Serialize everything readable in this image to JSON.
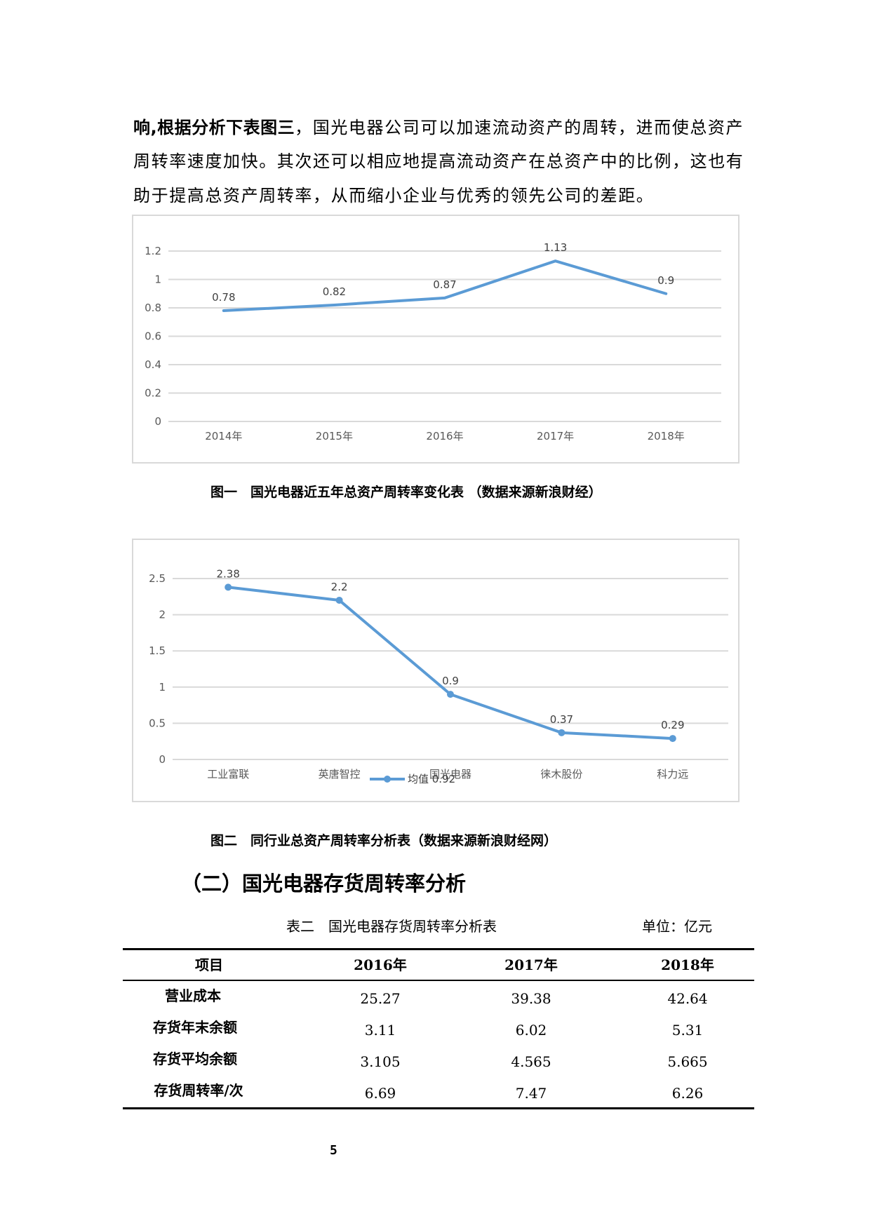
{
  "body_text": {
    "line1_bold": "响,根据分析下表图三",
    "line1_rest": "，国光电器公司可以加速流动资产的周转，进而使总资产",
    "line2": "周转率速度加快。其次还可以相应地提高流动资产在总资产中的比例，这也有",
    "line3": "助于提高总资产周转率，从而缩小企业与优秀的领先公司的差距。"
  },
  "figure1": {
    "caption": "图一　国光电器近五年总资产周转率变化表 （数据来源新浪财经）"
  },
  "figure2": {
    "caption": "图二　同行业总资产周转率分析表（数据来源新浪财经网）",
    "legend_label": "均值 0.92"
  },
  "section": {
    "heading": "（二）国光电器存货周转率分析"
  },
  "table": {
    "title": "表二　国光电器存货周转率分析表",
    "unit": "单位：亿元",
    "headers": [
      "项目",
      "2016年",
      "2017年",
      "2018年"
    ],
    "rows": [
      {
        "label": "营业成本",
        "values": [
          "25.27",
          "39.38",
          "42.64"
        ]
      },
      {
        "label": "存货年末余额",
        "values": [
          "3.11",
          "6.02",
          "5.31"
        ]
      },
      {
        "label": "存货平均余额",
        "values": [
          "3.105",
          "4.565",
          "5.665"
        ]
      },
      {
        "label": "存货周转率/次",
        "values": [
          "6.69",
          "7.47",
          "6.26"
        ]
      }
    ]
  },
  "page_number": "5",
  "colors": {
    "series": "#5b9bd5",
    "grid": "#d9d9d9",
    "axis_text": "#595959",
    "chart_border": "#d9d9d9"
  },
  "chart_data": [
    {
      "type": "line",
      "title": "国光电器近五年总资产周转率变化表",
      "categories": [
        "2014年",
        "2015年",
        "2016年",
        "2017年",
        "2018年"
      ],
      "values": [
        0.78,
        0.82,
        0.87,
        1.13,
        0.9
      ],
      "data_labels": [
        "0.78",
        "0.82",
        "0.87",
        "1.13",
        "0.9"
      ],
      "xlabel": "",
      "ylabel": "",
      "ylim": [
        0,
        1.2
      ],
      "yticks": [
        "0",
        "0.2",
        "0.4",
        "0.6",
        "0.8",
        "1",
        "1.2"
      ],
      "grid": true,
      "markers": false,
      "legend": null
    },
    {
      "type": "line",
      "title": "同行业总资产周转率分析表",
      "categories": [
        "工业富联",
        "英唐智控",
        "国光电器",
        "徕木股份",
        "科力远"
      ],
      "series": [
        {
          "name": "均值 0.92",
          "values": [
            2.38,
            2.2,
            0.9,
            0.37,
            0.29
          ]
        }
      ],
      "data_labels": [
        "2.38",
        "2.2",
        "0.9",
        "0.37",
        "0.29"
      ],
      "xlabel": "",
      "ylabel": "",
      "ylim": [
        0,
        2.5
      ],
      "yticks": [
        "0",
        "0.5",
        "1",
        "1.5",
        "2",
        "2.5"
      ],
      "grid": true,
      "markers": true,
      "legend_position": "bottom"
    }
  ]
}
